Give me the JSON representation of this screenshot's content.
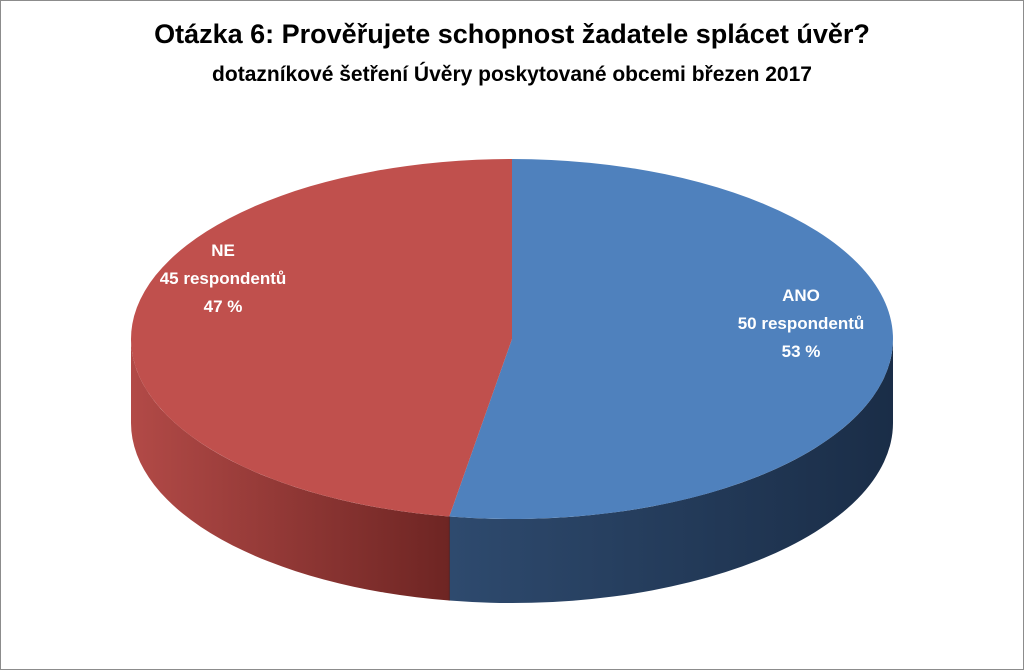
{
  "chart_data": {
    "type": "pie",
    "title": "Otázka 6: Prověřujete schopnost žadatele splácet úvěr?",
    "subtitle": "dotazníkové šetření Úvěry poskytované obcemi březen 2017",
    "style": "3d",
    "slices": [
      {
        "name": "ANO",
        "value": 50,
        "percent": 53,
        "count_label": "50 respondentů",
        "percent_label": "53 %",
        "color": "#4f81bd",
        "side_color": "#1f3552"
      },
      {
        "name": "NE",
        "value": 45,
        "percent": 47,
        "count_label": "45 respondentů",
        "percent_label": "47 %",
        "color": "#c0504d",
        "side_color": "#7a2d2b"
      }
    ]
  }
}
